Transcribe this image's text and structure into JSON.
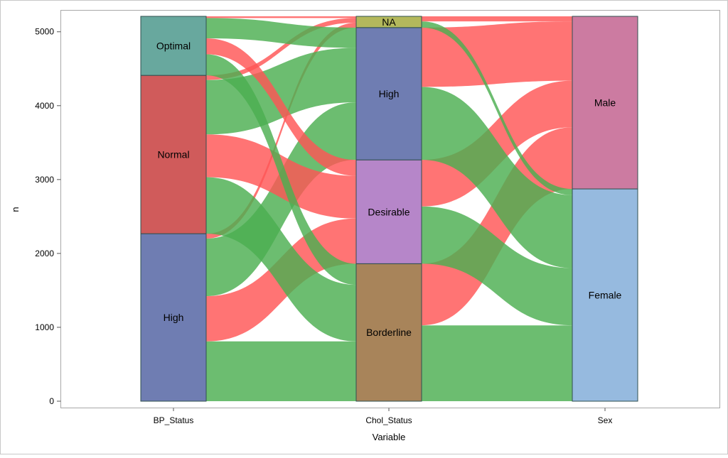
{
  "chart_data": {
    "type": "alluvial",
    "xlabel": "Variable",
    "ylabel": "n",
    "ylim": [
      0,
      5209
    ],
    "yticks": [
      0,
      1000,
      2000,
      3000,
      4000,
      5000
    ],
    "grid": false,
    "legend": "none",
    "colors": {
      "flow_a": "#ff5555",
      "flow_b": "#4caf50"
    },
    "axes": [
      {
        "name": "BP_Status",
        "nodes": [
          {
            "label": "High",
            "value": 2267,
            "color": "#6f7db2"
          },
          {
            "label": "Normal",
            "value": 2143,
            "color": "#d05b5b"
          },
          {
            "label": "Optimal",
            "value": 799,
            "color": "#68a89e"
          }
        ]
      },
      {
        "name": "Chol_Status",
        "nodes": [
          {
            "label": "Borderline",
            "value": 1861,
            "color": "#a8845a"
          },
          {
            "label": "Desirable",
            "value": 1405,
            "color": "#b686c9"
          },
          {
            "label": "High",
            "value": 1791,
            "color": "#6f7db2"
          },
          {
            "label": "NA",
            "value": 152,
            "color": "#b3b85c"
          }
        ]
      },
      {
        "name": "Sex",
        "nodes": [
          {
            "label": "Female",
            "value": 2873,
            "color": "#96badf"
          },
          {
            "label": "Male",
            "value": 2336,
            "color": "#cc7ba1"
          }
        ]
      }
    ]
  }
}
